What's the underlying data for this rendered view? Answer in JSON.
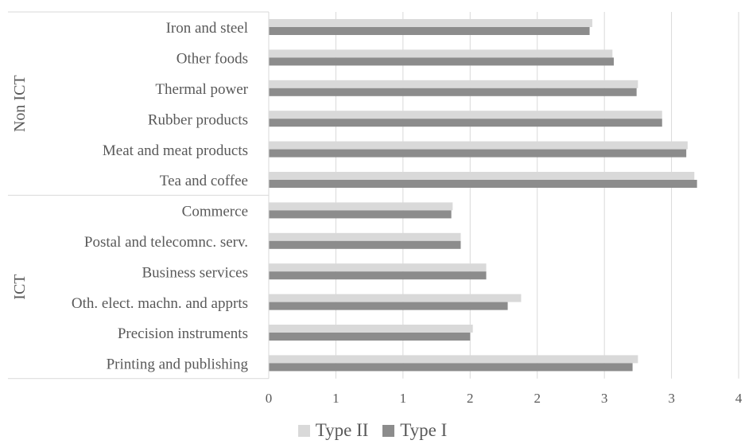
{
  "chart_data": {
    "type": "bar",
    "orientation": "horizontal",
    "groups": [
      {
        "name": "Non ICT",
        "categories": [
          "Iron and steel",
          "Other foods",
          "Thermal power",
          "Rubber products",
          "Meat and meat products",
          "Tea and coffee"
        ]
      },
      {
        "name": "ICT",
        "categories": [
          "Commerce",
          "Postal and telecomnc. serv.",
          "Business services",
          "Oth. elect. machn. and apprts",
          "Precision instruments",
          "Printing and publishing"
        ]
      }
    ],
    "categories": [
      "Iron and steel",
      "Other foods",
      "Thermal power",
      "Rubber products",
      "Meat and meat products",
      "Tea and coffee",
      "Commerce",
      "Postal and telecomnc. serv.",
      "Business services",
      "Oth. elect. machn. and apprts",
      "Precision instruments",
      "Printing and publishing"
    ],
    "series": [
      {
        "name": "Type II",
        "color": "#d9d9d9",
        "values": [
          2.41,
          2.56,
          2.75,
          2.93,
          3.12,
          3.17,
          1.37,
          1.43,
          1.62,
          1.88,
          1.52,
          2.75
        ]
      },
      {
        "name": "Type I",
        "color": "#8c8c8c",
        "values": [
          2.39,
          2.57,
          2.74,
          2.93,
          3.11,
          3.19,
          1.36,
          1.43,
          1.62,
          1.78,
          1.5,
          2.71
        ]
      }
    ],
    "xlim": [
      0,
      3.5
    ],
    "xtick_values": [
      0,
      0.5,
      1,
      1.5,
      2,
      2.5,
      3,
      3.5
    ],
    "xtick_labels": [
      "0",
      "1",
      "1",
      "2",
      "2",
      "3",
      "3",
      "4"
    ],
    "grid": true,
    "legend_position": "bottom",
    "title": "",
    "xlabel": "",
    "ylabel": ""
  }
}
